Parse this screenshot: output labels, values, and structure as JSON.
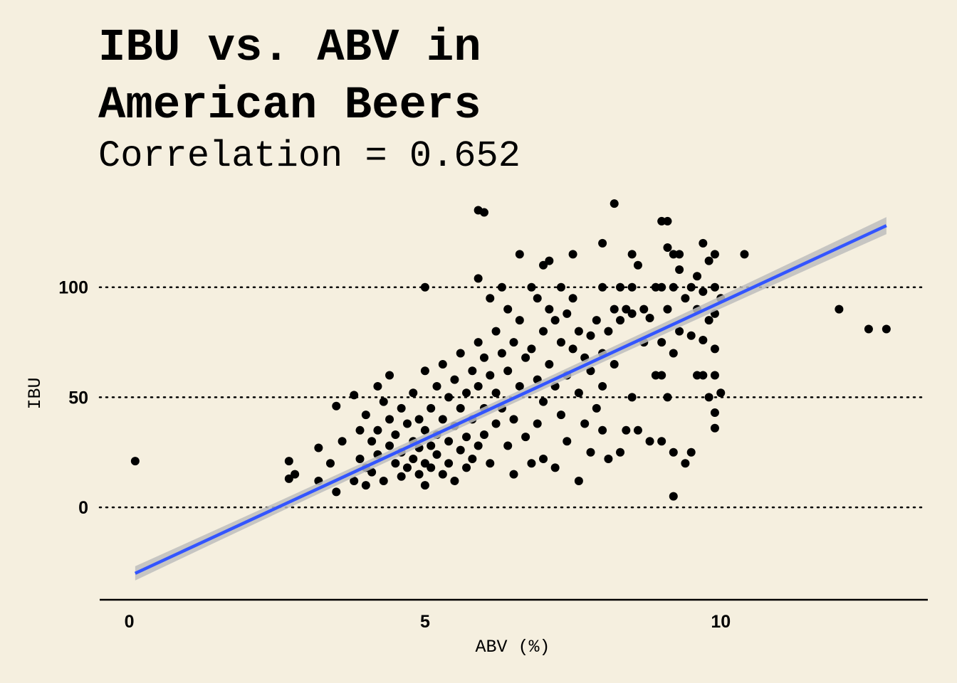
{
  "chart_data": {
    "type": "scatter",
    "title_lines": [
      "IBU vs. ABV in",
      "American Beers"
    ],
    "subtitle": "Correlation = 0.652",
    "xlabel": "ABV (%)",
    "ylabel": "IBU",
    "xlim": [
      -0.5,
      13.5
    ],
    "ylim": [
      -42,
      140
    ],
    "x_ticks": [
      0,
      5,
      10
    ],
    "y_ticks": [
      0,
      50,
      100
    ],
    "grid": "horizontal dotted",
    "colors": {
      "background": "#F5EFDF",
      "points": "#000000",
      "fit_line": "#3355FF",
      "confidence_band": "#BDBDBD"
    },
    "fit_line": {
      "x": [
        0.1,
        12.8
      ],
      "y": [
        -30,
        128
      ]
    },
    "series": [
      {
        "points": [
          [
            0.1,
            21
          ],
          [
            2.7,
            13
          ],
          [
            2.7,
            21
          ],
          [
            2.8,
            15
          ],
          [
            3.2,
            12
          ],
          [
            3.2,
            27
          ],
          [
            3.4,
            20
          ],
          [
            3.5,
            46
          ],
          [
            3.5,
            7
          ],
          [
            3.6,
            30
          ],
          [
            3.8,
            12
          ],
          [
            3.8,
            51
          ],
          [
            3.9,
            35
          ],
          [
            3.9,
            22
          ],
          [
            4.0,
            18
          ],
          [
            4.0,
            10
          ],
          [
            4.0,
            42
          ],
          [
            4.1,
            30
          ],
          [
            4.1,
            16
          ],
          [
            4.2,
            55
          ],
          [
            4.2,
            35
          ],
          [
            4.2,
            24
          ],
          [
            4.3,
            48
          ],
          [
            4.3,
            12
          ],
          [
            4.4,
            60
          ],
          [
            4.4,
            40
          ],
          [
            4.4,
            28
          ],
          [
            4.5,
            20
          ],
          [
            4.5,
            33
          ],
          [
            4.6,
            14
          ],
          [
            4.6,
            45
          ],
          [
            4.6,
            25
          ],
          [
            4.7,
            38
          ],
          [
            4.7,
            18
          ],
          [
            4.8,
            52
          ],
          [
            4.8,
            22
          ],
          [
            4.8,
            30
          ],
          [
            4.9,
            15
          ],
          [
            4.9,
            40
          ],
          [
            4.9,
            27
          ],
          [
            5.0,
            100
          ],
          [
            5.0,
            62
          ],
          [
            5.0,
            35
          ],
          [
            5.0,
            20
          ],
          [
            5.0,
            10
          ],
          [
            5.1,
            45
          ],
          [
            5.1,
            28
          ],
          [
            5.1,
            18
          ],
          [
            5.2,
            55
          ],
          [
            5.2,
            33
          ],
          [
            5.2,
            24
          ],
          [
            5.3,
            65
          ],
          [
            5.3,
            40
          ],
          [
            5.3,
            15
          ],
          [
            5.4,
            50
          ],
          [
            5.4,
            30
          ],
          [
            5.4,
            20
          ],
          [
            5.5,
            58
          ],
          [
            5.5,
            37
          ],
          [
            5.5,
            12
          ],
          [
            5.6,
            70
          ],
          [
            5.6,
            45
          ],
          [
            5.6,
            26
          ],
          [
            5.7,
            52
          ],
          [
            5.7,
            32
          ],
          [
            5.7,
            18
          ],
          [
            5.8,
            62
          ],
          [
            5.8,
            40
          ],
          [
            5.8,
            22
          ],
          [
            5.9,
            104
          ],
          [
            5.9,
            75
          ],
          [
            5.9,
            55
          ],
          [
            5.9,
            28
          ],
          [
            5.9,
            135
          ],
          [
            6.0,
            134
          ],
          [
            6.0,
            68
          ],
          [
            6.0,
            45
          ],
          [
            6.0,
            33
          ],
          [
            6.1,
            95
          ],
          [
            6.1,
            60
          ],
          [
            6.1,
            20
          ],
          [
            6.2,
            80
          ],
          [
            6.2,
            52
          ],
          [
            6.2,
            38
          ],
          [
            6.3,
            100
          ],
          [
            6.3,
            70
          ],
          [
            6.3,
            45
          ],
          [
            6.4,
            90
          ],
          [
            6.4,
            62
          ],
          [
            6.4,
            28
          ],
          [
            6.5,
            75
          ],
          [
            6.5,
            40
          ],
          [
            6.5,
            15
          ],
          [
            6.6,
            115
          ],
          [
            6.6,
            85
          ],
          [
            6.6,
            55
          ],
          [
            6.7,
            68
          ],
          [
            6.7,
            32
          ],
          [
            6.8,
            100
          ],
          [
            6.8,
            72
          ],
          [
            6.8,
            20
          ],
          [
            6.9,
            95
          ],
          [
            6.9,
            58
          ],
          [
            6.9,
            38
          ],
          [
            7.0,
            110
          ],
          [
            7.0,
            80
          ],
          [
            7.0,
            48
          ],
          [
            7.0,
            22
          ],
          [
            7.1,
            112
          ],
          [
            7.1,
            90
          ],
          [
            7.1,
            65
          ],
          [
            7.2,
            85
          ],
          [
            7.2,
            55
          ],
          [
            7.2,
            18
          ],
          [
            7.3,
            100
          ],
          [
            7.3,
            75
          ],
          [
            7.3,
            42
          ],
          [
            7.4,
            88
          ],
          [
            7.4,
            60
          ],
          [
            7.4,
            30
          ],
          [
            7.5,
            115
          ],
          [
            7.5,
            95
          ],
          [
            7.5,
            72
          ],
          [
            7.6,
            80
          ],
          [
            7.6,
            52
          ],
          [
            7.6,
            12
          ],
          [
            7.7,
            68
          ],
          [
            7.7,
            38
          ],
          [
            7.8,
            78
          ],
          [
            7.8,
            62
          ],
          [
            7.8,
            25
          ],
          [
            7.9,
            85
          ],
          [
            7.9,
            45
          ],
          [
            8.0,
            120
          ],
          [
            8.0,
            100
          ],
          [
            8.0,
            70
          ],
          [
            8.0,
            55
          ],
          [
            8.0,
            35
          ],
          [
            8.1,
            80
          ],
          [
            8.1,
            22
          ],
          [
            8.2,
            138
          ],
          [
            8.2,
            90
          ],
          [
            8.2,
            65
          ],
          [
            8.3,
            100
          ],
          [
            8.3,
            85
          ],
          [
            8.3,
            25
          ],
          [
            8.4,
            90
          ],
          [
            8.4,
            35
          ],
          [
            8.5,
            115
          ],
          [
            8.5,
            100
          ],
          [
            8.5,
            88
          ],
          [
            8.5,
            50
          ],
          [
            8.6,
            110
          ],
          [
            8.6,
            35
          ],
          [
            8.7,
            90
          ],
          [
            8.7,
            75
          ],
          [
            8.8,
            86
          ],
          [
            8.8,
            30
          ],
          [
            8.9,
            100
          ],
          [
            8.9,
            60
          ],
          [
            9.0,
            130
          ],
          [
            9.0,
            100
          ],
          [
            9.0,
            75
          ],
          [
            9.0,
            60
          ],
          [
            9.0,
            30
          ],
          [
            9.1,
            130
          ],
          [
            9.1,
            118
          ],
          [
            9.1,
            90
          ],
          [
            9.1,
            50
          ],
          [
            9.2,
            115
          ],
          [
            9.2,
            100
          ],
          [
            9.2,
            70
          ],
          [
            9.2,
            25
          ],
          [
            9.2,
            5
          ],
          [
            9.3,
            115
          ],
          [
            9.3,
            108
          ],
          [
            9.3,
            80
          ],
          [
            9.4,
            95
          ],
          [
            9.4,
            20
          ],
          [
            9.5,
            100
          ],
          [
            9.5,
            78
          ],
          [
            9.5,
            25
          ],
          [
            9.6,
            105
          ],
          [
            9.6,
            90
          ],
          [
            9.6,
            60
          ],
          [
            9.7,
            120
          ],
          [
            9.7,
            98
          ],
          [
            9.7,
            76
          ],
          [
            9.7,
            60
          ],
          [
            9.8,
            112
          ],
          [
            9.8,
            85
          ],
          [
            9.8,
            50
          ],
          [
            9.9,
            115
          ],
          [
            9.9,
            100
          ],
          [
            9.9,
            88
          ],
          [
            9.9,
            72
          ],
          [
            9.9,
            60
          ],
          [
            9.9,
            43
          ],
          [
            9.9,
            36
          ],
          [
            10.0,
            95
          ],
          [
            10.0,
            52
          ],
          [
            10.4,
            115
          ],
          [
            12.0,
            90
          ],
          [
            12.5,
            81
          ],
          [
            12.8,
            81
          ]
        ]
      }
    ]
  }
}
